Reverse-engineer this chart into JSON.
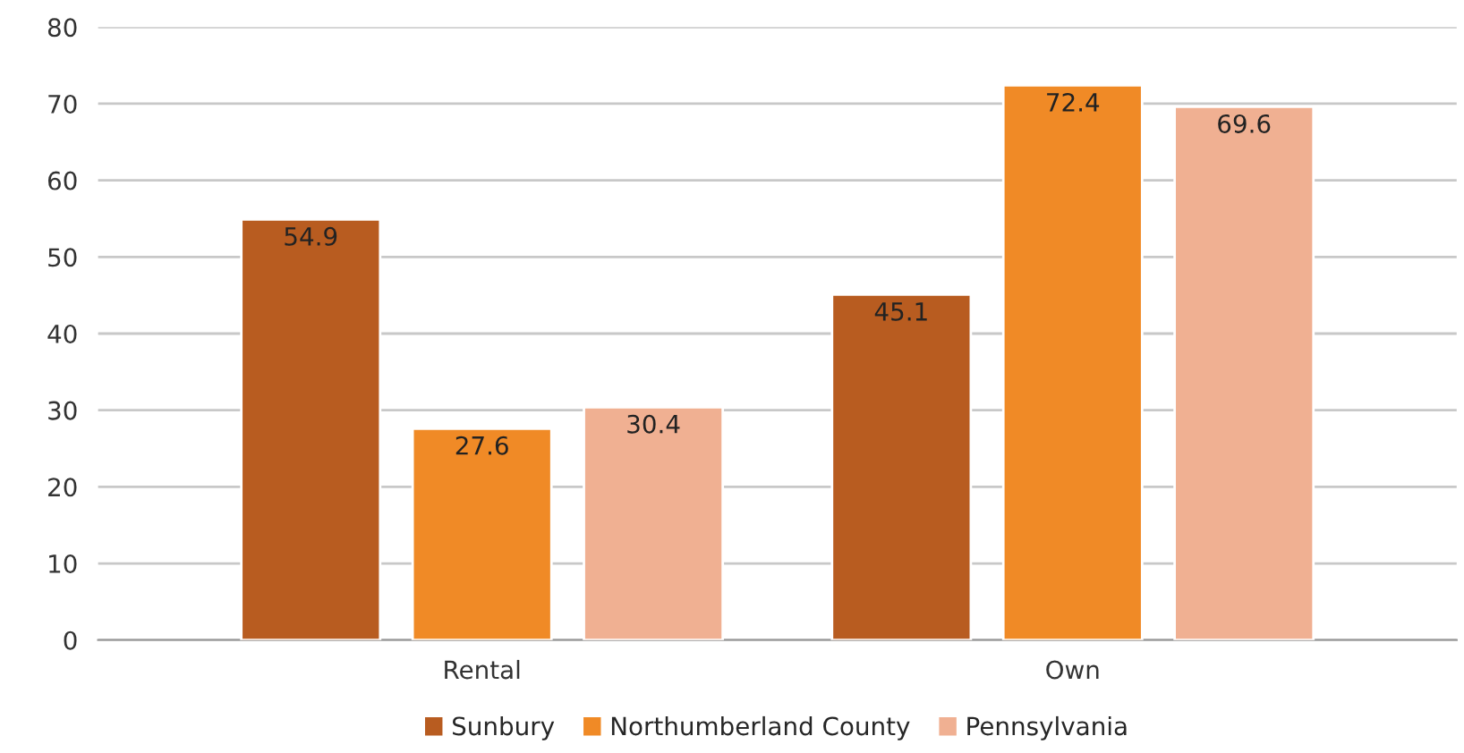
{
  "chart_data": {
    "type": "bar",
    "categories": [
      "Rental",
      "Own"
    ],
    "series": [
      {
        "name": "Sunbury",
        "color": "#b85c20",
        "values": [
          54.9,
          45.1
        ]
      },
      {
        "name": "Northumberland County",
        "color": "#f08a26",
        "values": [
          27.6,
          72.4
        ]
      },
      {
        "name": "Pennsylvania",
        "color": "#f0b092",
        "values": [
          30.4,
          69.6
        ]
      }
    ],
    "ylim": [
      0,
      80
    ],
    "yticks": [
      0,
      10,
      20,
      30,
      40,
      50,
      60,
      70,
      80
    ],
    "grid": "y",
    "legend": "bottom",
    "data_labels": true
  }
}
